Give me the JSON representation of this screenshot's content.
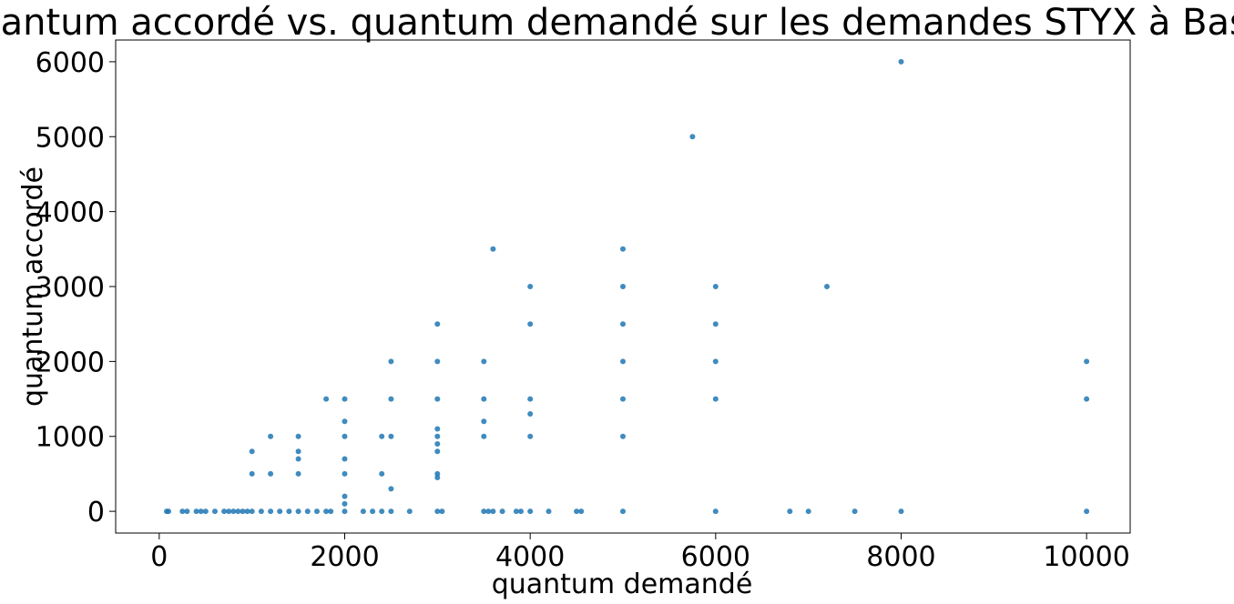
{
  "chart_data": {
    "type": "scatter",
    "title": "Quantum accordé vs. quantum demandé sur les demandes STYX à Bastia",
    "xlabel": "quantum demandé",
    "ylabel": "quantum accordé",
    "xlim": [
      -470,
      10470
    ],
    "ylim": [
      -290,
      6290
    ],
    "xticks": [
      0,
      2000,
      4000,
      6000,
      8000,
      10000
    ],
    "yticks": [
      0,
      1000,
      2000,
      3000,
      4000,
      5000,
      6000
    ],
    "xtick_labels": [
      "0",
      "2000",
      "4000",
      "6000",
      "8000",
      "10000"
    ],
    "ytick_labels": [
      "0",
      "1000",
      "2000",
      "3000",
      "4000",
      "5000",
      "6000"
    ],
    "grid": false,
    "marker_color": "#1f77b4",
    "series": [
      {
        "points": [
          [
            80,
            0
          ],
          [
            100,
            0
          ],
          [
            250,
            0
          ],
          [
            300,
            0
          ],
          [
            400,
            0
          ],
          [
            450,
            0
          ],
          [
            500,
            0
          ],
          [
            600,
            0
          ],
          [
            700,
            0
          ],
          [
            750,
            0
          ],
          [
            800,
            0
          ],
          [
            850,
            0
          ],
          [
            900,
            0
          ],
          [
            950,
            0
          ],
          [
            1000,
            0
          ],
          [
            1100,
            0
          ],
          [
            1200,
            0
          ],
          [
            1300,
            0
          ],
          [
            1400,
            0
          ],
          [
            1500,
            0
          ],
          [
            1600,
            0
          ],
          [
            1700,
            0
          ],
          [
            1800,
            0
          ],
          [
            1850,
            0
          ],
          [
            2000,
            0
          ],
          [
            2200,
            0
          ],
          [
            2300,
            0
          ],
          [
            2400,
            0
          ],
          [
            2500,
            0
          ],
          [
            2700,
            0
          ],
          [
            3000,
            0
          ],
          [
            3050,
            0
          ],
          [
            3500,
            0
          ],
          [
            3550,
            0
          ],
          [
            3600,
            0
          ],
          [
            3700,
            0
          ],
          [
            3850,
            0
          ],
          [
            3900,
            0
          ],
          [
            4000,
            0
          ],
          [
            4200,
            0
          ],
          [
            4500,
            0
          ],
          [
            4550,
            0
          ],
          [
            5000,
            0
          ],
          [
            6000,
            0
          ],
          [
            6800,
            0
          ],
          [
            7000,
            0
          ],
          [
            7500,
            0
          ],
          [
            8000,
            0
          ],
          [
            10000,
            0
          ],
          [
            1000,
            800
          ],
          [
            1000,
            500
          ],
          [
            1200,
            1000
          ],
          [
            1200,
            500
          ],
          [
            1500,
            1000
          ],
          [
            1500,
            800
          ],
          [
            1500,
            700
          ],
          [
            1500,
            500
          ],
          [
            1800,
            1500
          ],
          [
            2000,
            1500
          ],
          [
            2000,
            1200
          ],
          [
            2000,
            1000
          ],
          [
            2000,
            700
          ],
          [
            2000,
            500
          ],
          [
            2000,
            200
          ],
          [
            2000,
            100
          ],
          [
            2400,
            1000
          ],
          [
            2400,
            500
          ],
          [
            2500,
            2000
          ],
          [
            2500,
            1500
          ],
          [
            2500,
            1000
          ],
          [
            2500,
            300
          ],
          [
            3000,
            2500
          ],
          [
            3000,
            2000
          ],
          [
            3000,
            1500
          ],
          [
            3000,
            1100
          ],
          [
            3000,
            1000
          ],
          [
            3000,
            900
          ],
          [
            3000,
            800
          ],
          [
            3000,
            500
          ],
          [
            3000,
            450
          ],
          [
            3500,
            2000
          ],
          [
            3500,
            1500
          ],
          [
            3500,
            1200
          ],
          [
            3500,
            1000
          ],
          [
            3600,
            3500
          ],
          [
            4000,
            3000
          ],
          [
            4000,
            2500
          ],
          [
            4000,
            1500
          ],
          [
            4000,
            1300
          ],
          [
            4000,
            1000
          ],
          [
            5000,
            3500
          ],
          [
            5000,
            3000
          ],
          [
            5000,
            2500
          ],
          [
            5000,
            2000
          ],
          [
            5000,
            1500
          ],
          [
            5000,
            1000
          ],
          [
            5750,
            5000
          ],
          [
            6000,
            3000
          ],
          [
            6000,
            2500
          ],
          [
            6000,
            2000
          ],
          [
            6000,
            1500
          ],
          [
            7200,
            3000
          ],
          [
            8000,
            6000
          ],
          [
            10000,
            2000
          ],
          [
            10000,
            1500
          ]
        ]
      }
    ]
  }
}
